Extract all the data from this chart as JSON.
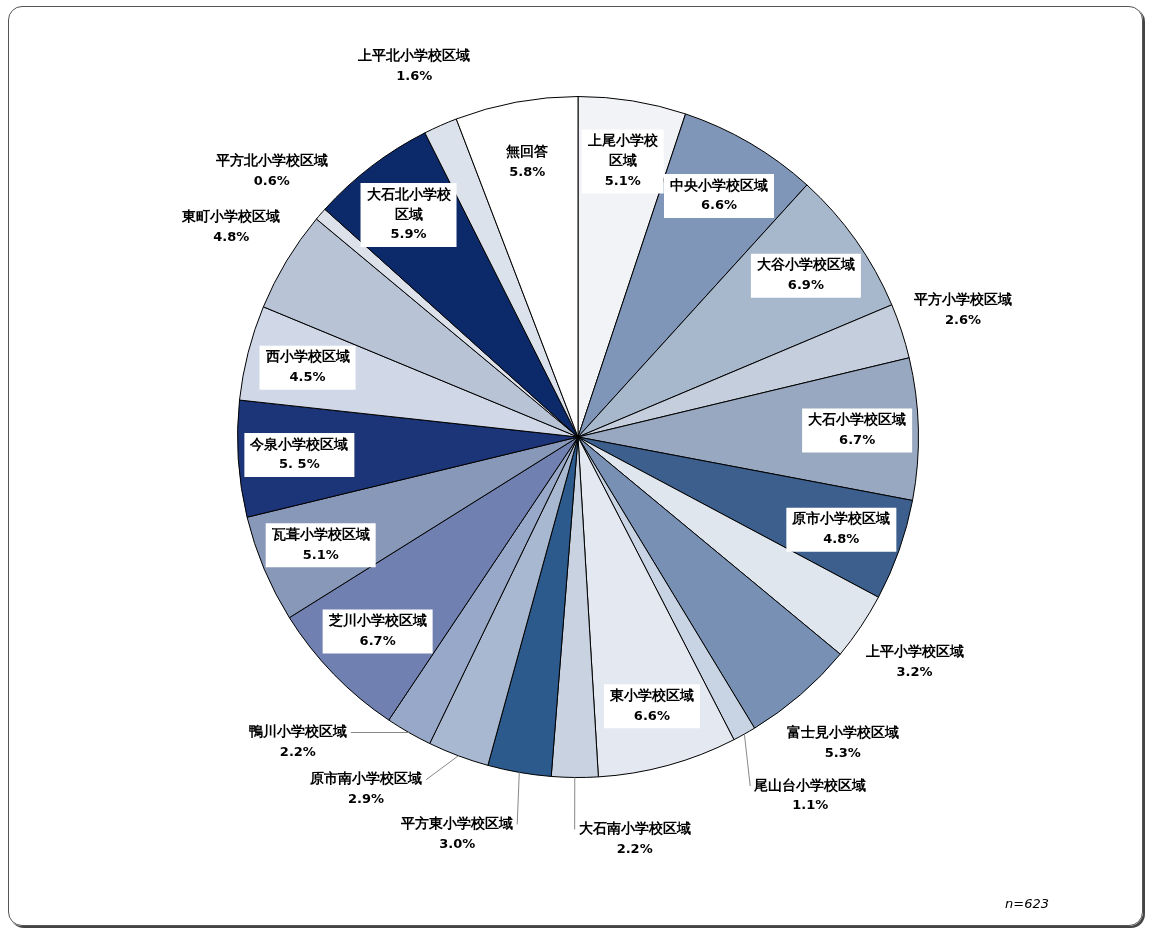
{
  "chart_data": {
    "type": "pie",
    "categories": [
      "上尾小学校区域",
      "中央小学校区域",
      "大谷小学校区域",
      "平方小学校区域",
      "大石小学校区域",
      "原市小学校区域",
      "上平小学校区域",
      "富士見小学校区域",
      "尾山台小学校区域",
      "東小学校区域",
      "大石南小学校区域",
      "平方東小学校区域",
      "原市南小学校区域",
      "鴨川小学校区域",
      "芝川小学校区域",
      "瓦葺小学校区域",
      "今泉小学校区域",
      "西小学校区域",
      "東町小学校区域",
      "平方北小学校区域",
      "大石北小学校区域",
      "上平北小学校区域",
      "無回答"
    ],
    "values": [
      5.1,
      6.6,
      6.9,
      2.6,
      6.7,
      4.8,
      3.2,
      5.3,
      1.1,
      6.6,
      2.2,
      3.0,
      2.9,
      2.2,
      6.7,
      5.1,
      5.5,
      4.5,
      4.8,
      0.6,
      5.9,
      1.6,
      5.8
    ],
    "value_labels": [
      "5.1%",
      "6.6%",
      "6.9%",
      "2.6%",
      "6.7%",
      "4.8%",
      "3.2%",
      "5.3%",
      "1.1%",
      "6.6%",
      "2.2%",
      "3.0%",
      "2.9%",
      "2.2%",
      "6.7%",
      "5.1%",
      "5. 5%",
      "4.5%",
      "4.8%",
      "0.6%",
      "5.9%",
      "1.6%",
      "5.8%"
    ],
    "colors": [
      "#f2f3f6",
      "#7f96b8",
      "#a8b8cc",
      "#c4cedc",
      "#98a8c0",
      "#3c5f8e",
      "#e0e6ee",
      "#7890b4",
      "#c8d4e4",
      "#e4e8f0",
      "#c8d2e0",
      "#2c5a8c",
      "#a8b8d0",
      "#98a8c8",
      "#7080b0",
      "#8898b8",
      "#1c3478",
      "#d0d8e8",
      "#b8c4d6",
      "#dde2ea",
      "#0c2a6a",
      "#dce2ec",
      "#ffffff"
    ],
    "annotations": [
      "n=623"
    ],
    "legend": false
  }
}
